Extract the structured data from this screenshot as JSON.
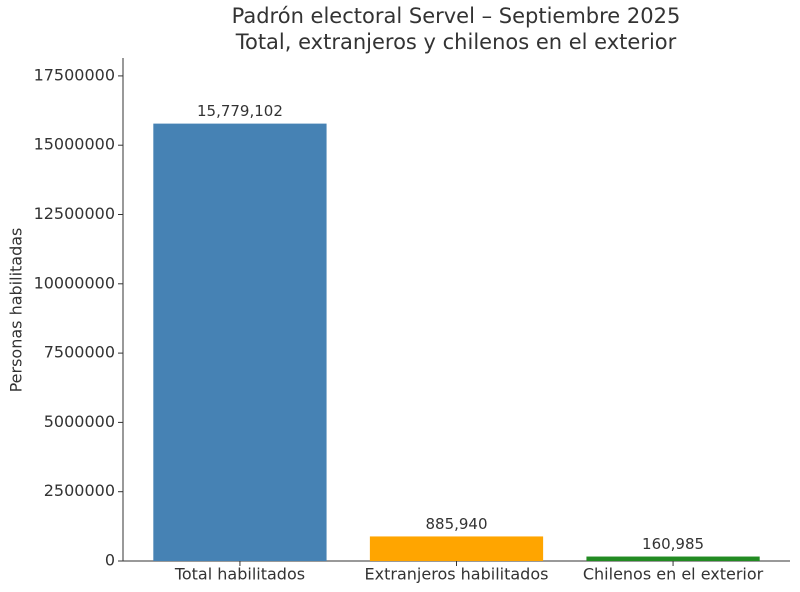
{
  "chart_data": {
    "type": "bar",
    "title": "Padrón electoral Servel – Septiembre 2025",
    "subtitle": "Total, extranjeros y chilenos en el exterior",
    "y_label": "Personas habilitadas",
    "categories": [
      "Total habilitados",
      "Extranjeros habilitados",
      "Chilenos en el exterior"
    ],
    "values": [
      15779102,
      885940,
      160985
    ],
    "value_labels": [
      "15,779,102",
      "885,940",
      "160,985"
    ],
    "colors": [
      "#4682b4",
      "#ffa500",
      "#228b22"
    ],
    "ylim": [
      0,
      18145967
    ],
    "yticks": [
      0,
      2500000,
      5000000,
      7500000,
      10000000,
      12500000,
      15000000,
      17500000
    ]
  }
}
